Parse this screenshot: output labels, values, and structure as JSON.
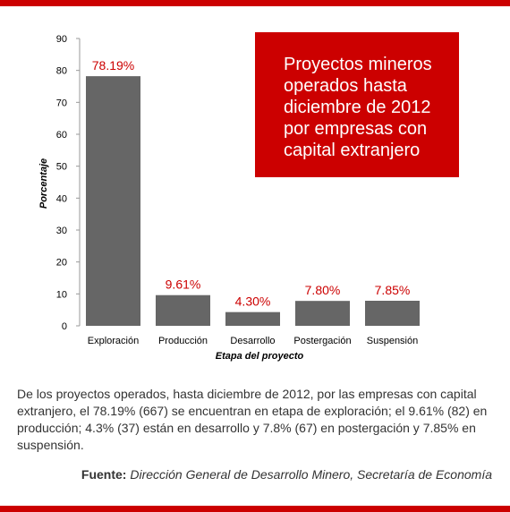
{
  "chart_data": {
    "type": "bar",
    "title": "Proyectos mineros operados hasta diciembre de 2012 por empresas con capital extranjero",
    "xlabel": "Etapa del proyecto",
    "ylabel": "Porcentaje",
    "ylim": [
      0,
      90
    ],
    "yticks": [
      0,
      10,
      20,
      30,
      40,
      50,
      60,
      70,
      80,
      90
    ],
    "categories": [
      "Exploración",
      "Producción",
      "Desarrollo",
      "Postergación",
      "Suspensión"
    ],
    "values": [
      78.19,
      9.61,
      4.3,
      7.8,
      7.85
    ],
    "data_labels": [
      "78.19%",
      "9.61%",
      "4.30%",
      "7.80%",
      "7.85%"
    ],
    "grid": false,
    "bar_color": "#666666",
    "label_color": "#cc0000"
  },
  "description": "De los proyectos operados, hasta diciembre de 2012, por las empresas con capital extranjero, el 78.19% (667) se encuentran en etapa de exploración; el 9.61% (82) en producción; 4.3% (37) están en desarrollo y 7.8% (67) en postergación y 7.85% en suspensión.",
  "source": {
    "label": "Fuente:",
    "text": "Dirección General de Desarrollo Minero, Secretaría de Economía"
  },
  "colors": {
    "accent": "#cc0000",
    "bars": "#666666"
  }
}
